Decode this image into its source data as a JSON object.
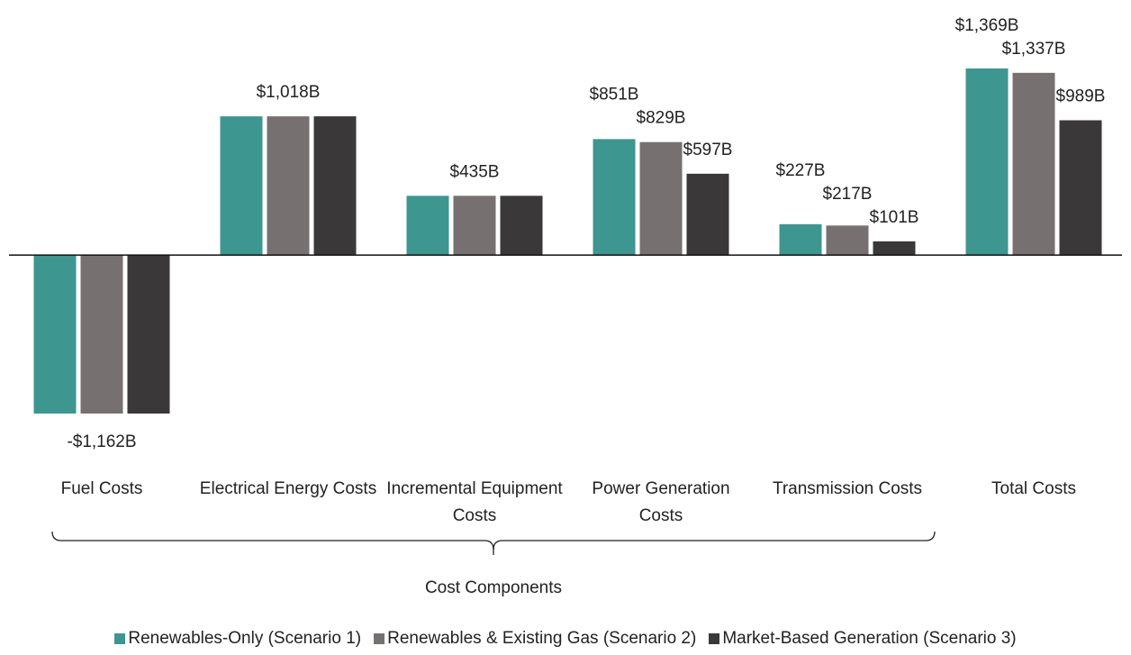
{
  "chart_data": {
    "type": "bar",
    "categories": [
      "Fuel Costs",
      "Electrical Energy Costs",
      "Incremental Equipment Costs",
      "Power Generation Costs",
      "Transmission Costs",
      "Total Costs"
    ],
    "x_label": "Cost Components",
    "series": [
      {
        "name": "Renewables-Only (Scenario 1)",
        "color": "#3d9690",
        "values": [
          -1162,
          1018,
          435,
          851,
          227,
          1369
        ],
        "value_labels": [
          null,
          null,
          null,
          "$851B",
          "$227B",
          "$1,369B"
        ]
      },
      {
        "name": "Renewables & Existing Gas (Scenario 2)",
        "color": "#767170",
        "values": [
          -1162,
          1018,
          435,
          829,
          217,
          1337
        ],
        "value_labels": [
          "-$1,162B",
          "$1,018B",
          "$435B",
          "$829B",
          "$217B",
          "$1,337B"
        ]
      },
      {
        "name": "Market-Based Generation (Scenario 3)",
        "color": "#3a3839",
        "values": [
          -1162,
          1018,
          435,
          597,
          101,
          989
        ],
        "value_labels": [
          null,
          null,
          null,
          "$597B",
          "$101B",
          "$989B"
        ]
      }
    ],
    "legend": "bottom"
  }
}
